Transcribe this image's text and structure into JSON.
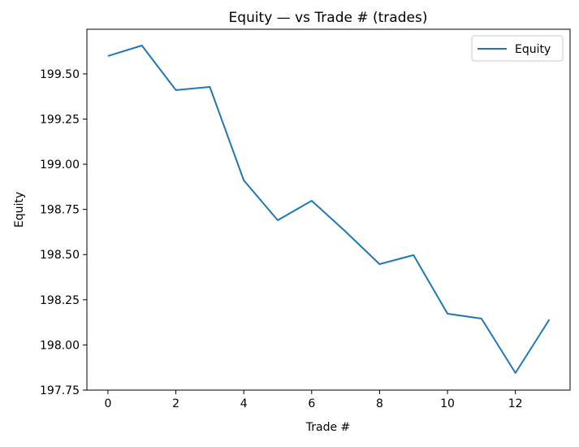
{
  "chart_data": {
    "type": "line",
    "title": "Equity — vs Trade # (trades)",
    "xlabel": "Trade #",
    "ylabel": "Equity",
    "xlim": [
      -0.62,
      13.61
    ],
    "ylim": [
      197.75,
      199.747
    ],
    "xticks": [
      0,
      2,
      4,
      6,
      8,
      10,
      12
    ],
    "xtick_labels": [
      "0",
      "2",
      "4",
      "6",
      "8",
      "10",
      "12"
    ],
    "yticks": [
      197.75,
      198.0,
      198.25,
      198.5,
      198.75,
      199.0,
      199.25,
      199.5
    ],
    "ytick_labels": [
      "197.75",
      "198.00",
      "198.25",
      "198.50",
      "198.75",
      "199.00",
      "199.25",
      "199.50"
    ],
    "grid": false,
    "legend_position": "top-right",
    "series": [
      {
        "name": "Equity",
        "color": "#1f77b4",
        "x": [
          0,
          1,
          2,
          3,
          4,
          5,
          6,
          7,
          8,
          9,
          10,
          11,
          12,
          13
        ],
        "y": [
          199.599,
          199.657,
          199.41,
          199.428,
          198.911,
          198.69,
          198.798,
          198.627,
          198.447,
          198.497,
          198.173,
          198.146,
          197.845,
          198.141
        ]
      }
    ]
  }
}
